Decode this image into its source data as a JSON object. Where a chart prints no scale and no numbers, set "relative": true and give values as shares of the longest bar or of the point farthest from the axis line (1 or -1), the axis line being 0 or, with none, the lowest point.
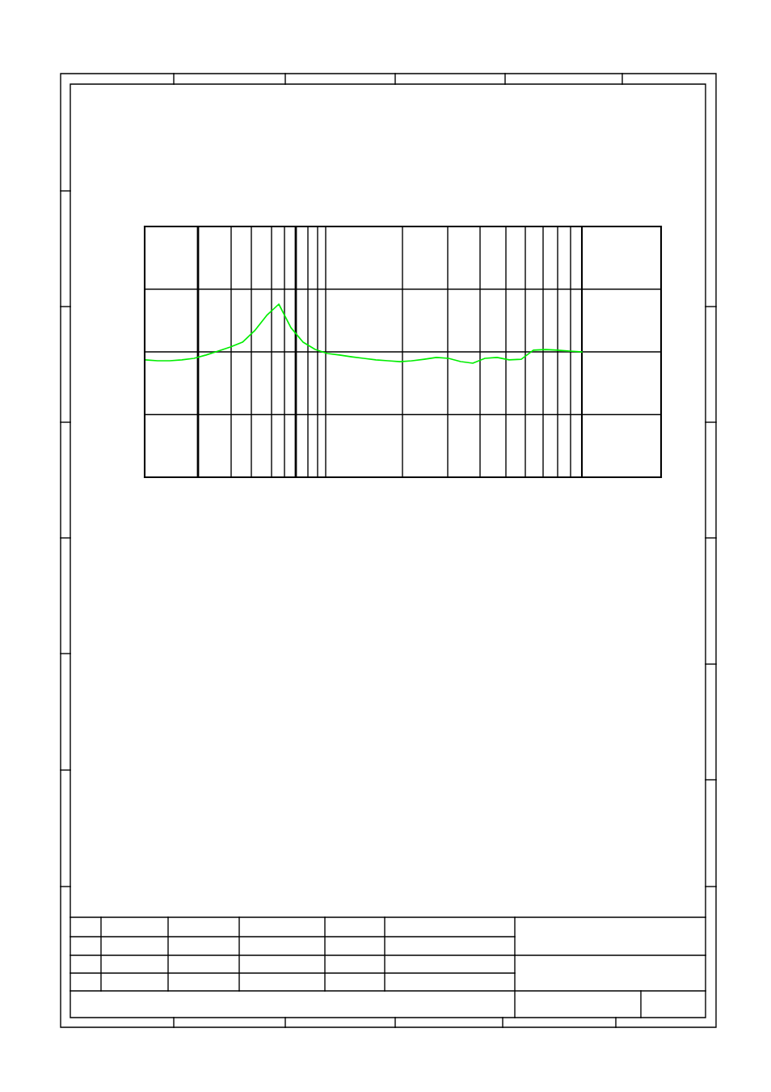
{
  "chart_data": {
    "type": "line",
    "relative": true,
    "grid": true,
    "categories": [
      null,
      null,
      null,
      null,
      null,
      null,
      null,
      null,
      null,
      null,
      null,
      null,
      null,
      null,
      null,
      null,
      null,
      null,
      null,
      null,
      null,
      null,
      null,
      null,
      null,
      null,
      null,
      null,
      null,
      null,
      null,
      null,
      null,
      null,
      null,
      null,
      null
    ],
    "series": [
      {
        "color": "#00ee00",
        "values": [
          0.678,
          0.673,
          0.673,
          0.678,
          0.687,
          0.706,
          0.729,
          0.752,
          0.78,
          0.846,
          0.935,
          1,
          0.864,
          0.78,
          0.738,
          0.715,
          0.706,
          0.696,
          0.687,
          0.678,
          0.673,
          0.668,
          0.673,
          0.682,
          0.692,
          0.687,
          0.668,
          0.659,
          0.687,
          0.692,
          0.678,
          0.682,
          0.734,
          0.738,
          0.734,
          0.729,
          0.724
        ]
      }
    ]
  }
}
